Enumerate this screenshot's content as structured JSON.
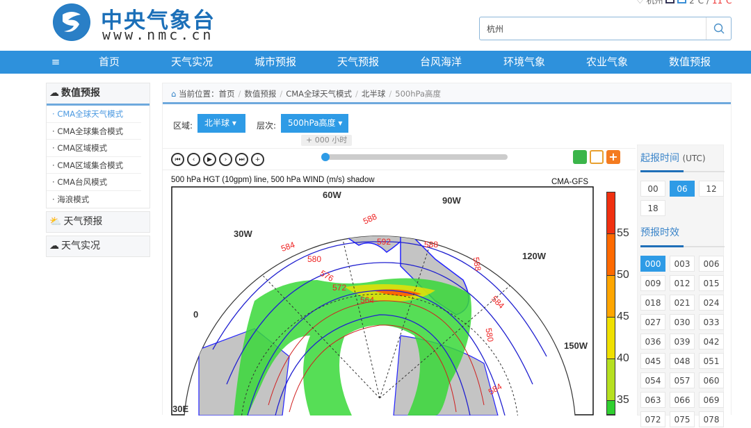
{
  "header": {
    "logo_cn": "中央气象台",
    "logo_url": "www.nmc.cn",
    "city": "杭州",
    "temp_low": "2℃ /",
    "temp_high": "11℃",
    "search_value": "杭州"
  },
  "nav": [
    "≡",
    "首页",
    "天气实况",
    "城市预报",
    "天气预报",
    "台风海洋",
    "环境气象",
    "农业气象",
    "数值预报"
  ],
  "sidebar": {
    "section1": {
      "title": "数值预报",
      "items": [
        "CMA全球天气模式",
        "CMA全球集合模式",
        "CMA区域模式",
        "CMA区域集合模式",
        "CMA台风模式",
        "海浪模式"
      ],
      "active": 0
    },
    "section2": "天气预报",
    "section3": "天气实况"
  },
  "breadcrumb": {
    "label": "当前位置：",
    "items": [
      "首页",
      "数值预报",
      "CMA全球天气模式",
      "北半球"
    ],
    "current": "500hPa高度"
  },
  "selectors": {
    "region_label": "区域:",
    "region_value": "北半球",
    "level_label": "层次:",
    "level_value": "500hPa高度"
  },
  "player": {
    "tooltip": "+ 000 小时",
    "progress_percent": 0
  },
  "map": {
    "title": "500 hPa HGT (10gpm) line, 500 hPa WIND (m/s) shadow",
    "model": "CMA-GFS",
    "lon_labels": [
      "60W",
      "90W",
      "30W",
      "120W",
      "0",
      "150W",
      "30E"
    ],
    "contour_labels": [
      "588",
      "584",
      "580",
      "576",
      "592",
      "588",
      "588",
      "584",
      "580",
      "572",
      "564",
      "584"
    ],
    "colorbar": {
      "ticks": [
        "55",
        "50",
        "45",
        "40",
        "35"
      ],
      "colors": [
        "#f03010",
        "#ff6a00",
        "#ffa600",
        "#f0e000",
        "#b6e020",
        "#30d030"
      ]
    }
  },
  "right_panel": {
    "init_title": "起报时间",
    "init_unit": "(UTC)",
    "init_times": [
      "00",
      "06",
      "12",
      "18"
    ],
    "init_selected": "06",
    "lead_title": "预报时效",
    "lead_times": [
      "000",
      "003",
      "006",
      "009",
      "012",
      "015",
      "018",
      "021",
      "024",
      "027",
      "030",
      "033",
      "036",
      "039",
      "042",
      "045",
      "048",
      "051",
      "054",
      "057",
      "060",
      "063",
      "066",
      "069",
      "072",
      "075",
      "078"
    ],
    "lead_selected": "000"
  }
}
